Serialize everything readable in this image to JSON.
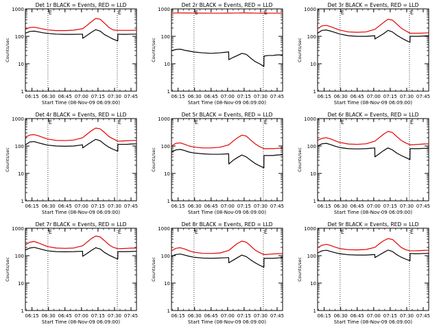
{
  "colors": {
    "background": "#ffffff",
    "axes": "#000000",
    "events": "#000000",
    "lld": "#e00000"
  },
  "chart_data": [
    {
      "type": "line",
      "title": "Det 1r BLACK = Events, RED = LLD",
      "xlabel": "Start Time (08-Nov-09 06:09:00)",
      "ylabel": "Counts/sec",
      "x_ticks": [
        "06:15",
        "06:30",
        "06:45",
        "07:00",
        "07:15",
        "07:30",
        "07:45"
      ],
      "x_tick_minutes": [
        6,
        21,
        36,
        51,
        66,
        81,
        96
      ],
      "xlim_minutes": [
        0,
        101
      ],
      "y_scale": "log",
      "ylim": [
        1,
        1000
      ],
      "y_ticks": [
        "1",
        "10",
        "100",
        "1000"
      ],
      "marker_label": "E",
      "dotted_vlines_minutes": [
        20.5,
        83.5
      ],
      "x": [
        0,
        4,
        8,
        12,
        16,
        20,
        28,
        36,
        44,
        52,
        52.1,
        56,
        60,
        64,
        68,
        72,
        76,
        80,
        84,
        84.1,
        88,
        92,
        96,
        101
      ],
      "series": [
        {
          "name": "LLD",
          "y": [
            180,
            210,
            215,
            200,
            185,
            172,
            162,
            162,
            168,
            190,
            190,
            250,
            340,
            450,
            420,
            300,
            210,
            170,
            165,
            165,
            165,
            165,
            165,
            168
          ]
        },
        {
          "name": "Events",
          "y": [
            130,
            150,
            155,
            145,
            135,
            128,
            120,
            118,
            118,
            120,
            85,
            108,
            140,
            175,
            155,
            115,
            95,
            78,
            68,
            120,
            118,
            118,
            120,
            120
          ]
        }
      ]
    },
    {
      "type": "line",
      "title": "Det 2r BLACK = Events, RED = LLD",
      "xlabel": "Start Time (08-Nov-09 06:09:00)",
      "ylabel": "Counts/sec",
      "x_ticks": [
        "06:15",
        "06:30",
        "06:45",
        "07:00",
        "07:15",
        "07:30",
        "07:45"
      ],
      "x_tick_minutes": [
        6,
        21,
        36,
        51,
        66,
        81,
        96
      ],
      "xlim_minutes": [
        0,
        101
      ],
      "y_scale": "log",
      "ylim": [
        1,
        1000
      ],
      "y_ticks": [
        "1",
        "10",
        "100",
        "1000"
      ],
      "marker_label": "E",
      "dotted_vlines_minutes": [
        20.5,
        83.5
      ],
      "x": [
        0,
        4,
        8,
        12,
        16,
        20,
        28,
        36,
        44,
        52,
        52.1,
        56,
        60,
        64,
        68,
        72,
        76,
        80,
        84,
        84.1,
        88,
        92,
        96,
        101
      ],
      "series": [
        {
          "name": "LLD",
          "y": [
            700,
            710,
            715,
            712,
            708,
            705,
            702,
            700,
            700,
            702,
            702,
            705,
            710,
            715,
            712,
            708,
            705,
            700,
            698,
            698,
            700,
            700,
            700,
            700
          ]
        },
        {
          "name": "Events",
          "y": [
            30,
            33,
            34,
            31,
            29,
            27,
            25,
            24,
            25,
            27,
            14,
            17,
            20,
            24,
            22,
            16,
            12,
            10,
            8,
            19,
            20,
            20,
            21,
            21
          ]
        }
      ]
    },
    {
      "type": "line",
      "title": "Det 3r BLACK = Events, RED = LLD",
      "xlabel": "Start Time (08-Nov-09 06:09:00)",
      "ylabel": "Counts/sec",
      "x_ticks": [
        "06:15",
        "06:30",
        "06:45",
        "07:00",
        "07:15",
        "07:30",
        "07:45"
      ],
      "x_tick_minutes": [
        6,
        21,
        36,
        51,
        66,
        81,
        96
      ],
      "xlim_minutes": [
        0,
        101
      ],
      "y_scale": "log",
      "ylim": [
        1,
        1000
      ],
      "y_ticks": [
        "1",
        "10",
        "100",
        "1000"
      ],
      "marker_label": "E",
      "dotted_vlines_minutes": [
        20.5,
        83.5
      ],
      "x": [
        0,
        4,
        8,
        12,
        16,
        20,
        28,
        36,
        44,
        52,
        52.1,
        56,
        60,
        64,
        68,
        72,
        76,
        80,
        84,
        84.1,
        88,
        92,
        96,
        101
      ],
      "series": [
        {
          "name": "LLD",
          "y": [
            190,
            240,
            250,
            225,
            195,
            170,
            145,
            140,
            145,
            180,
            180,
            240,
            320,
            420,
            390,
            280,
            200,
            160,
            130,
            130,
            130,
            130,
            132,
            135
          ]
        },
        {
          "name": "Events",
          "y": [
            130,
            165,
            170,
            155,
            138,
            122,
            105,
            100,
            100,
            105,
            80,
            100,
            125,
            165,
            145,
            110,
            88,
            72,
            60,
            100,
            100,
            100,
            102,
            105
          ]
        }
      ]
    },
    {
      "type": "line",
      "title": "Det 4r BLACK = Events, RED = LLD",
      "xlabel": "Start Time (08-Nov-09 06:09:00)",
      "ylabel": "Counts/sec",
      "x_ticks": [
        "06:15",
        "06:30",
        "06:45",
        "07:00",
        "07:15",
        "07:30",
        "07:45"
      ],
      "x_tick_minutes": [
        6,
        21,
        36,
        51,
        66,
        81,
        96
      ],
      "xlim_minutes": [
        0,
        101
      ],
      "y_scale": "log",
      "ylim": [
        1,
        1000
      ],
      "y_ticks": [
        "1",
        "10",
        "100",
        "1000"
      ],
      "marker_label": "E",
      "dotted_vlines_minutes": [
        20.5,
        83.5
      ],
      "x": [
        0,
        4,
        8,
        12,
        16,
        20,
        28,
        36,
        44,
        52,
        52.1,
        56,
        60,
        64,
        68,
        72,
        76,
        80,
        84,
        84.1,
        88,
        92,
        96,
        101
      ],
      "series": [
        {
          "name": "LLD",
          "y": [
            210,
            250,
            260,
            235,
            205,
            180,
            160,
            158,
            165,
            200,
            200,
            270,
            360,
            450,
            420,
            310,
            220,
            180,
            150,
            150,
            152,
            155,
            158,
            160
          ]
        },
        {
          "name": "Events",
          "y": [
            110,
            140,
            145,
            130,
            118,
            108,
            100,
            98,
            100,
            110,
            85,
            110,
            140,
            175,
            155,
            115,
            90,
            75,
            65,
            115,
            115,
            115,
            118,
            120
          ]
        }
      ]
    },
    {
      "type": "line",
      "title": "Det 5r BLACK = Events, RED = LLD",
      "xlabel": "Start Time (08-Nov-09 06:09:00)",
      "ylabel": "Counts/sec",
      "x_ticks": [
        "06:15",
        "06:30",
        "06:45",
        "07:00",
        "07:15",
        "07:30",
        "07:45"
      ],
      "x_tick_minutes": [
        6,
        21,
        36,
        51,
        66,
        81,
        96
      ],
      "xlim_minutes": [
        0,
        101
      ],
      "y_scale": "log",
      "ylim": [
        1,
        1000
      ],
      "y_ticks": [
        "1",
        "10",
        "100",
        "1000"
      ],
      "marker_label": "E",
      "dotted_vlines_minutes": [
        20.5,
        83.5
      ],
      "x": [
        0,
        4,
        8,
        12,
        16,
        20,
        28,
        36,
        44,
        52,
        52.1,
        56,
        60,
        64,
        68,
        72,
        76,
        80,
        84,
        84.1,
        88,
        92,
        96,
        101
      ],
      "series": [
        {
          "name": "LLD",
          "y": [
            100,
            125,
            130,
            115,
            100,
            92,
            85,
            85,
            90,
            110,
            110,
            150,
            200,
            250,
            230,
            165,
            120,
            95,
            80,
            80,
            80,
            80,
            82,
            85
          ]
        },
        {
          "name": "Events",
          "y": [
            60,
            72,
            75,
            68,
            60,
            56,
            52,
            50,
            50,
            52,
            22,
            30,
            38,
            47,
            40,
            30,
            23,
            19,
            16,
            45,
            45,
            45,
            47,
            48
          ]
        }
      ]
    },
    {
      "type": "line",
      "title": "Det 6r BLACK = Events, RED = LLD",
      "xlabel": "Start Time (08-Nov-09 06:09:00)",
      "ylabel": "Counts/sec",
      "x_ticks": [
        "06:15",
        "06:30",
        "06:45",
        "07:00",
        "07:15",
        "07:30",
        "07:45"
      ],
      "x_tick_minutes": [
        6,
        21,
        36,
        51,
        66,
        81,
        96
      ],
      "xlim_minutes": [
        0,
        101
      ],
      "y_scale": "log",
      "ylim": [
        1,
        1000
      ],
      "y_ticks": [
        "1",
        "10",
        "100",
        "1000"
      ],
      "marker_label": "E",
      "dotted_vlines_minutes": [
        20.5,
        83.5
      ],
      "x": [
        0,
        4,
        8,
        12,
        16,
        20,
        28,
        36,
        44,
        52,
        52.1,
        56,
        60,
        64,
        68,
        72,
        76,
        80,
        84,
        84.1,
        88,
        92,
        96,
        101
      ],
      "series": [
        {
          "name": "LLD",
          "y": [
            160,
            190,
            200,
            180,
            155,
            135,
            118,
            115,
            120,
            150,
            150,
            200,
            270,
            340,
            310,
            220,
            160,
            130,
            110,
            110,
            112,
            115,
            118,
            120
          ]
        },
        {
          "name": "Events",
          "y": [
            100,
            120,
            125,
            112,
            98,
            88,
            80,
            78,
            80,
            85,
            40,
            52,
            68,
            85,
            72,
            55,
            45,
            38,
            32,
            80,
            80,
            80,
            82,
            82
          ]
        }
      ]
    },
    {
      "type": "line",
      "title": "Det 7r BLACK = Events, RED = LLD",
      "xlabel": "Start Time (08-Nov-09 06:09:00)",
      "ylabel": "Counts/sec",
      "x_ticks": [
        "06:15",
        "06:30",
        "06:45",
        "07:00",
        "07:15",
        "07:30",
        "07:45"
      ],
      "x_tick_minutes": [
        6,
        21,
        36,
        51,
        66,
        81,
        96
      ],
      "xlim_minutes": [
        0,
        101
      ],
      "y_scale": "log",
      "ylim": [
        1,
        1000
      ],
      "y_ticks": [
        "1",
        "10",
        "100",
        "1000"
      ],
      "marker_label": "E",
      "dotted_vlines_minutes": [
        20.5,
        83.5
      ],
      "x": [
        0,
        4,
        8,
        12,
        16,
        20,
        28,
        36,
        44,
        52,
        52.1,
        56,
        60,
        64,
        68,
        72,
        76,
        80,
        84,
        84.1,
        88,
        92,
        96,
        101
      ],
      "series": [
        {
          "name": "LLD",
          "y": [
            250,
            310,
            330,
            290,
            250,
            215,
            190,
            185,
            190,
            230,
            230,
            310,
            420,
            520,
            480,
            350,
            250,
            200,
            180,
            180,
            182,
            185,
            188,
            190
          ]
        },
        {
          "name": "Events",
          "y": [
            160,
            190,
            200,
            182,
            165,
            150,
            140,
            138,
            140,
            145,
            95,
            120,
            155,
            195,
            175,
            130,
            105,
            88,
            75,
            140,
            140,
            140,
            142,
            145
          ]
        }
      ]
    },
    {
      "type": "line",
      "title": "Det 8r BLACK = Events, RED = LLD",
      "xlabel": "Start Time (08-Nov-09 06:09:00)",
      "ylabel": "Counts/sec",
      "x_ticks": [
        "06:15",
        "06:30",
        "06:45",
        "07:00",
        "07:15",
        "07:30",
        "07:45"
      ],
      "x_tick_minutes": [
        6,
        21,
        36,
        51,
        66,
        81,
        96
      ],
      "xlim_minutes": [
        0,
        101
      ],
      "y_scale": "log",
      "ylim": [
        1,
        1000
      ],
      "y_ticks": [
        "1",
        "10",
        "100",
        "1000"
      ],
      "marker_label": "E",
      "dotted_vlines_minutes": [
        20.5,
        83.5
      ],
      "x": [
        0,
        4,
        8,
        12,
        16,
        20,
        28,
        36,
        44,
        52,
        52.1,
        56,
        60,
        64,
        68,
        72,
        76,
        80,
        84,
        84.1,
        88,
        92,
        96,
        101
      ],
      "series": [
        {
          "name": "LLD",
          "y": [
            150,
            185,
            195,
            175,
            150,
            135,
            122,
            120,
            125,
            155,
            155,
            210,
            280,
            340,
            310,
            225,
            160,
            130,
            110,
            110,
            112,
            115,
            118,
            120
          ]
        },
        {
          "name": "Events",
          "y": [
            95,
            110,
            115,
            105,
            95,
            88,
            82,
            80,
            82,
            85,
            55,
            68,
            85,
            105,
            92,
            70,
            55,
            45,
            38,
            80,
            80,
            80,
            82,
            85
          ]
        }
      ]
    },
    {
      "type": "line",
      "title": "Det 9r BLACK = Events, RED = LLD",
      "xlabel": "Start Time (08-Nov-09 06:09:00)",
      "ylabel": "Counts/sec",
      "x_ticks": [
        "06:15",
        "06:30",
        "06:45",
        "07:00",
        "07:15",
        "07:30",
        "07:45"
      ],
      "x_tick_minutes": [
        6,
        21,
        36,
        51,
        66,
        81,
        96
      ],
      "xlim_minutes": [
        0,
        101
      ],
      "y_scale": "log",
      "ylim": [
        1,
        1000
      ],
      "y_ticks": [
        "1",
        "10",
        "100",
        "1000"
      ],
      "marker_label": "E",
      "dotted_vlines_minutes": [
        20.5,
        83.5
      ],
      "x": [
        0,
        4,
        8,
        12,
        16,
        20,
        28,
        36,
        44,
        52,
        52.1,
        56,
        60,
        64,
        68,
        72,
        76,
        80,
        84,
        84.1,
        88,
        92,
        96,
        101
      ],
      "series": [
        {
          "name": "LLD",
          "y": [
            195,
            240,
            260,
            235,
            205,
            182,
            165,
            162,
            168,
            200,
            200,
            270,
            350,
            420,
            390,
            280,
            200,
            165,
            150,
            150,
            150,
            152,
            155,
            158
          ]
        },
        {
          "name": "Events",
          "y": [
            125,
            150,
            158,
            142,
            128,
            118,
            108,
            105,
            105,
            110,
            85,
            105,
            130,
            160,
            142,
            108,
            88,
            75,
            65,
            120,
            118,
            118,
            120,
            122
          ]
        }
      ]
    }
  ]
}
